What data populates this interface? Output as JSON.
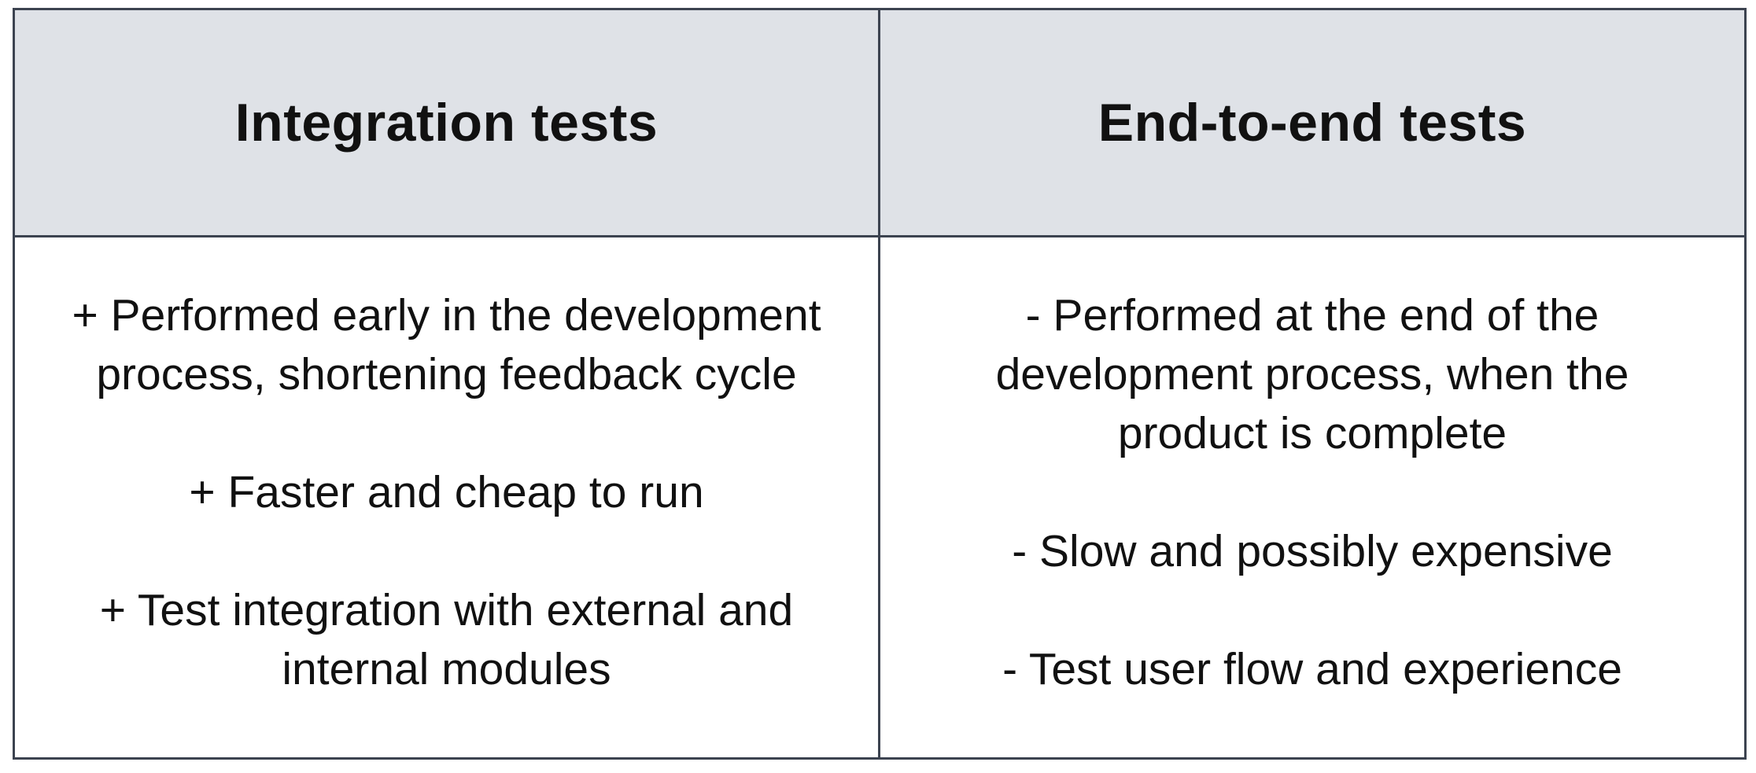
{
  "table": {
    "columns": [
      {
        "header": "Integration tests",
        "points": [
          "+ Performed early in the development\nprocess, shortening feedback cycle",
          "+ Faster and cheap to run",
          "+ Test integration with external and\ninternal modules"
        ]
      },
      {
        "header": "End-to-end tests",
        "points": [
          "- Performed at the end of the\ndevelopment process, when the\nproduct is complete",
          "- Slow and possibly expensive",
          "- Test user flow and experience"
        ]
      }
    ]
  },
  "colors": {
    "header_background": "#dfe2e7",
    "border": "#3c4350",
    "text": "#111111",
    "body_background": "#ffffff"
  }
}
